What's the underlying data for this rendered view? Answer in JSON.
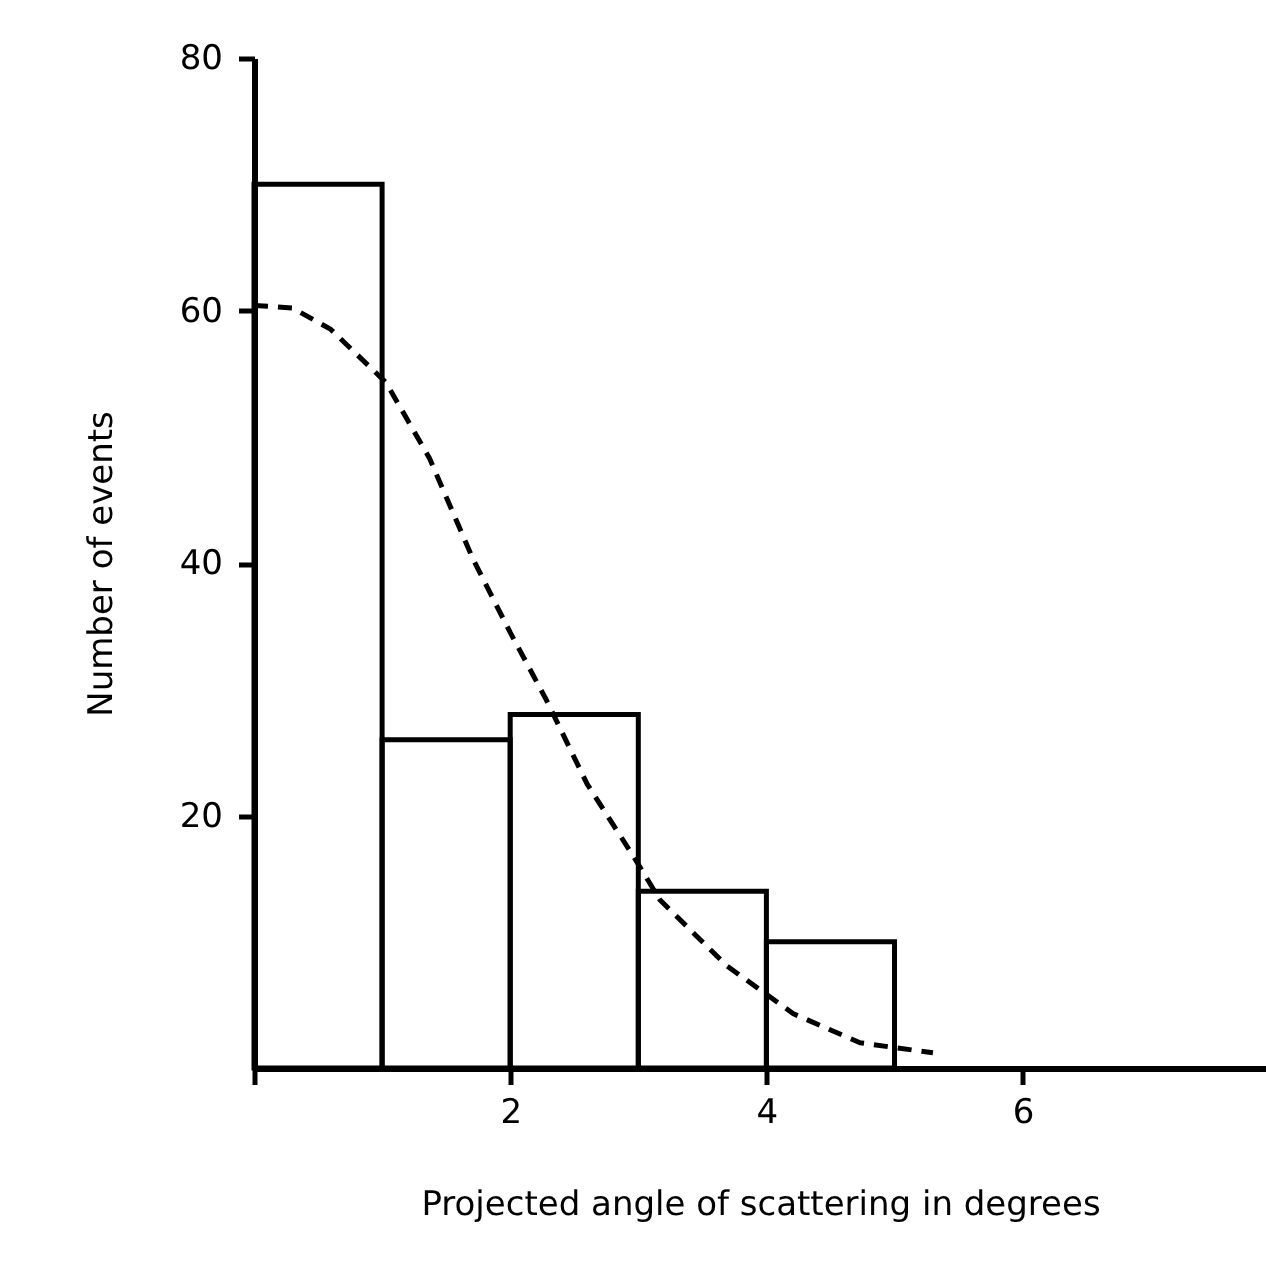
{
  "chart_data": {
    "type": "histogram",
    "xlabel": "Projected angle of scattering in degrees",
    "ylabel": "Number of events",
    "bins": [
      0,
      1,
      2,
      3,
      4,
      5
    ],
    "values": [
      70,
      26,
      28,
      14,
      10
    ],
    "color": "#000000",
    "series": [
      {
        "type": "line",
        "line_style": "dashed",
        "color": "#000000",
        "x": [
          0,
          0.3,
          0.6,
          1.03,
          1.37,
          1.71,
          2.0,
          2.28,
          2.6,
          2.96,
          3.17,
          3.69,
          4.21,
          4.73,
          5.3
        ],
        "values": [
          60.4,
          60.2,
          58.5,
          54.3,
          48.3,
          40.3,
          34.5,
          29.2,
          22.5,
          16.8,
          13.3,
          8.1,
          4.3,
          2.0,
          1.2
        ]
      }
    ],
    "xlim": [
      0,
      7.9
    ],
    "ylim": [
      0,
      80
    ],
    "xticks": [
      {
        "value": 0,
        "label": null
      },
      2,
      4,
      6
    ],
    "yticks": [
      20,
      40,
      60,
      80
    ],
    "grid": false
  }
}
